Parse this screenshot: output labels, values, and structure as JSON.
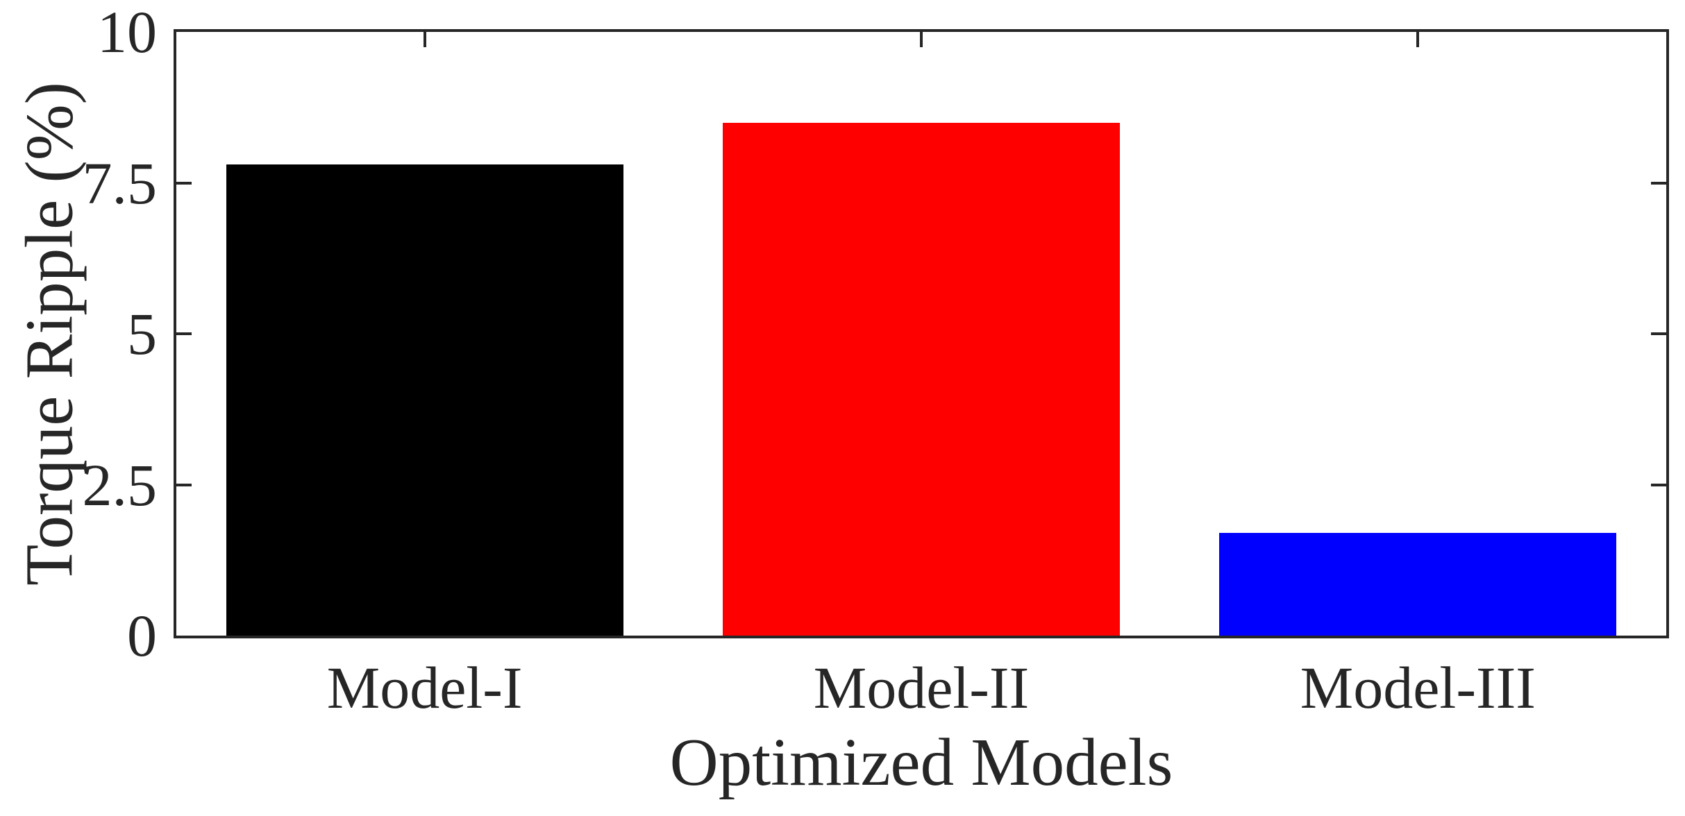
{
  "figure": {
    "background_color": "#ffffff",
    "axis_color": "#262626",
    "text_color": "#262626"
  },
  "chart_data": {
    "type": "bar",
    "categories": [
      "Model-I",
      "Model-II",
      "Model-III"
    ],
    "values": [
      7.8,
      8.5,
      1.7
    ],
    "bar_colors": [
      "#000000",
      "#ff0000",
      "#0000ff"
    ],
    "xlabel": "Optimized Models",
    "ylabel": "Torque Ripple (%)",
    "ylim": [
      0,
      10
    ],
    "yticks": [
      0,
      2.5,
      5,
      7.5,
      10
    ],
    "ytick_labels": [
      "0",
      "2.5",
      "5",
      "7.5",
      "10"
    ],
    "bar_width_fraction": 0.8,
    "grid": false,
    "box": true,
    "tick_direction": "in"
  }
}
